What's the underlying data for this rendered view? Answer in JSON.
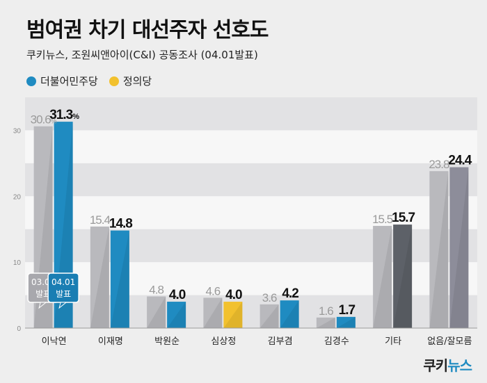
{
  "title": "범여권 차기 대선주자 선호도",
  "subtitle": "쿠키뉴스, 조원씨앤아이(C&I) 공동조사 (04.01발표)",
  "legend": [
    {
      "label": "더불어민주당",
      "color": "#1f8bc1"
    },
    {
      "label": "정의당",
      "color": "#f2c12e"
    }
  ],
  "annotations": {
    "prev": "03.04\n발표",
    "curr": "04.01\n발표"
  },
  "brand": {
    "part1": "쿠키",
    "part2": "뉴스"
  },
  "chart_data": {
    "type": "bar",
    "ylim": [
      0,
      35
    ],
    "yticks": [
      0,
      10,
      20,
      30
    ],
    "categories": [
      "이낙연",
      "이재명",
      "박원순",
      "심상정",
      "김부겸",
      "김경수",
      "기타",
      "없음/잘모름"
    ],
    "series": [
      {
        "name": "03.04 발표",
        "values": [
          30.6,
          15.4,
          4.8,
          4.6,
          3.6,
          1.6,
          15.5,
          23.8
        ],
        "color": "#b9b9bd"
      },
      {
        "name": "04.01 발표",
        "values": [
          31.3,
          14.8,
          4.0,
          4.0,
          4.2,
          1.7,
          15.7,
          24.4
        ],
        "colors": [
          "#1f8bc1",
          "#1f8bc1",
          "#1f8bc1",
          "#f2c12e",
          "#1f8bc1",
          "#1f8bc1",
          "#5d6168",
          "#8d8d9a"
        ]
      }
    ],
    "value_labels_prev": [
      "30.6%",
      "15.4",
      "4.8",
      "4.6",
      "3.6",
      "1.6",
      "15.5",
      "23.8"
    ],
    "value_labels_curr": [
      "31.3%",
      "14.8",
      "4.0",
      "4.0",
      "4.2",
      "1.7",
      "15.7",
      "24.4"
    ]
  }
}
